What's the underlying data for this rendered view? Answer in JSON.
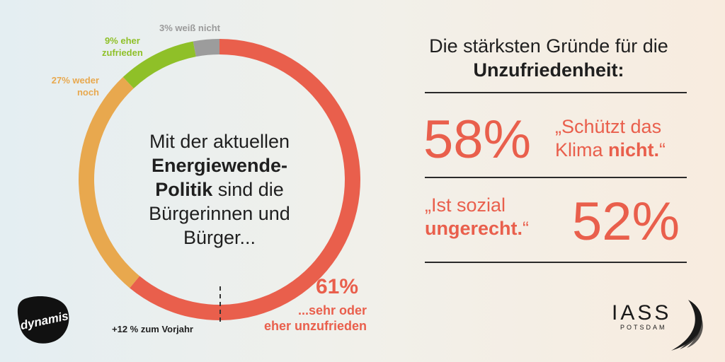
{
  "chart_data": {
    "type": "pie",
    "categories": [
      "sehr oder eher unzufrieden",
      "weder noch",
      "eher zufrieden",
      "weiß nicht"
    ],
    "values": [
      61,
      27,
      9,
      3
    ],
    "colors": [
      "#e95f4c",
      "#e8a84e",
      "#8fc028",
      "#9c9c9c"
    ],
    "start_angle_deg": 0,
    "donut": true
  },
  "labels": {
    "weiss_nicht": "3% weiß nicht",
    "zufrieden_l1": "9% eher",
    "zufrieden_l2": "zufrieden",
    "weder_l1": "27% weder",
    "weder_l2": "noch",
    "unzufrieden_pct": "61%",
    "unzufrieden_l1": "...sehr oder",
    "unzufrieden_l2": "eher unzufrieden",
    "vorjahr": "+12 % zum Vorjahr"
  },
  "center": {
    "line1": "Mit der aktuellen",
    "bold1": "Energiewende-",
    "bold2": "Politik",
    "line3": " sind die",
    "line4": "Bürgerinnen und",
    "line5": "Bürger..."
  },
  "right": {
    "title_line1": "Die stärksten Gründe für die",
    "title_bold": "Unzufriedenheit:",
    "reason1_pct": "58%",
    "reason1_q1": "„Schützt das",
    "reason1_q2a": "Klima ",
    "reason1_q2b": "nicht.",
    "reason1_q2c": "“",
    "reason2_q1": "„Ist sozial",
    "reason2_q2a": "ungerecht.",
    "reason2_q2b": "“",
    "reason2_pct": "52%"
  },
  "logos": {
    "left": "dynamis",
    "right_main": "IASS",
    "right_sub": "POTSDAM"
  }
}
